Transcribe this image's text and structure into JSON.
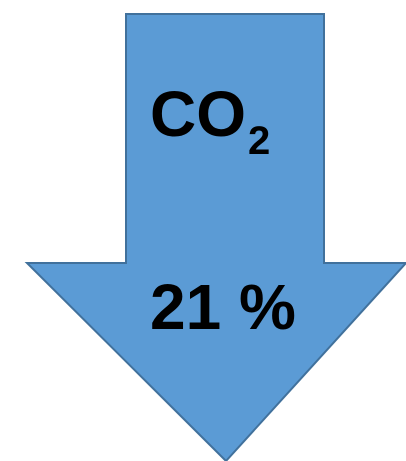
{
  "arrow": {
    "direction": "down",
    "fill_color": "#5B9BD5",
    "stroke_color": "#41719C"
  },
  "label": {
    "molecule_main": "CO",
    "molecule_subscript": "2",
    "value": "21 %"
  }
}
